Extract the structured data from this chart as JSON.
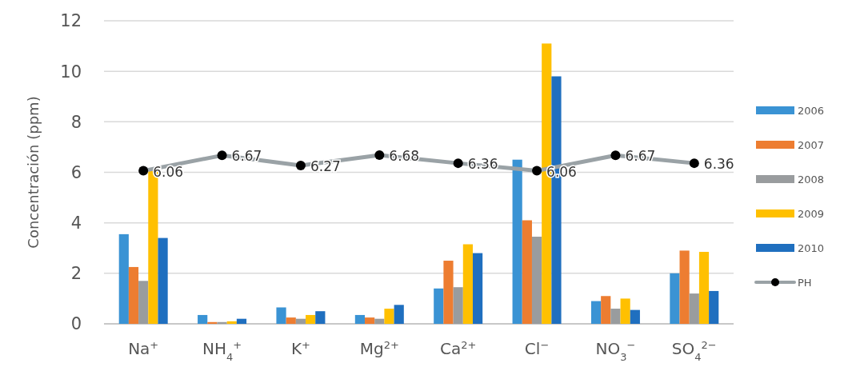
{
  "chart_data": {
    "type": "bar",
    "ylabel": "Concentración (ppm)",
    "categories": [
      "Na$^{+}$",
      "NH$_{4}$$^{+}$",
      "K$^{+}$",
      "Mg$^{2+}$",
      "Ca$^{2+}$",
      "Cl$^{−}$",
      "NO$_{3}$$^{−}$",
      "SO$_{4}$$^{2−}$"
    ],
    "series": [
      {
        "name": "2006",
        "color": "#3a93d4",
        "values": [
          3.55,
          0.35,
          0.65,
          0.35,
          1.4,
          6.5,
          0.9,
          2.0
        ]
      },
      {
        "name": "2007",
        "color": "#ed7d31",
        "values": [
          2.25,
          0.07,
          0.25,
          0.25,
          2.5,
          4.1,
          1.1,
          2.9
        ]
      },
      {
        "name": "2008",
        "color": "#999c9e",
        "values": [
          1.7,
          0.07,
          0.2,
          0.2,
          1.45,
          3.45,
          0.6,
          1.2
        ]
      },
      {
        "name": "2009",
        "color": "#ffc000",
        "values": [
          6.05,
          0.1,
          0.35,
          0.6,
          3.15,
          11.1,
          1.0,
          2.85
        ]
      },
      {
        "name": "2010",
        "color": "#1f6fbf",
        "values": [
          3.4,
          0.2,
          0.5,
          0.75,
          2.8,
          9.8,
          0.55,
          1.3
        ]
      },
      {
        "name": "PH",
        "type": "line",
        "color": "#9aa2a6",
        "marker": "circle",
        "values": [
          6.06,
          6.67,
          6.27,
          6.68,
          6.36,
          6.06,
          6.67,
          6.36
        ],
        "value_labels": [
          "6.06",
          "6.67",
          "6.27",
          "6.68",
          "6.36",
          "6.06",
          "6.67",
          "6.36"
        ]
      }
    ],
    "ylim": [
      0,
      12
    ],
    "yticks": [
      0,
      2,
      4,
      6,
      8,
      10,
      12
    ],
    "grid": "y",
    "legend": "right"
  }
}
